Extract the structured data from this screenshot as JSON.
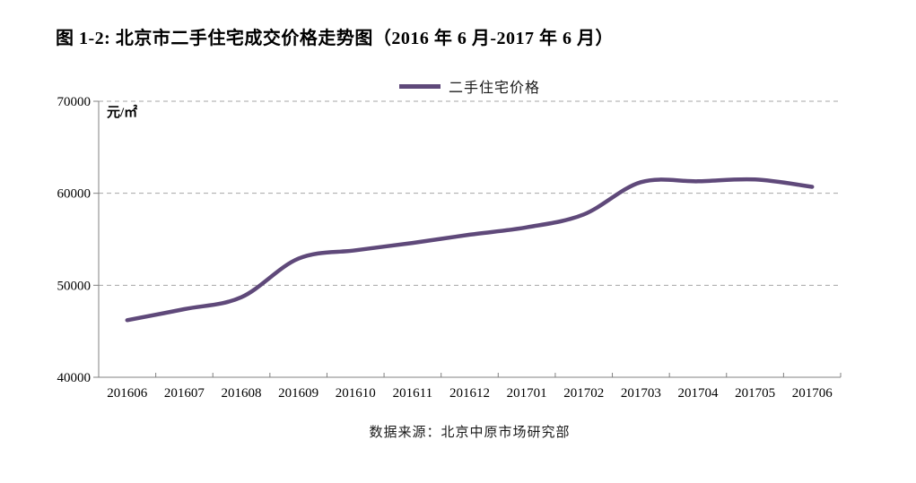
{
  "title": "图 1-2: 北京市二手住宅成交价格走势图（2016 年 6 月-2017 年 6 月）",
  "legend": {
    "label": "二手住宅价格"
  },
  "unit_label": "元/㎡",
  "source": "数据来源：北京中原市场研究部",
  "colors": {
    "line": "#5F497A",
    "grid": "#A6A6A6",
    "axis": "#808080",
    "text": "#000000"
  },
  "chart_data": {
    "type": "line",
    "title": "图 1-2: 北京市二手住宅成交价格走势图（2016 年 6 月-2017 年 6 月）",
    "categories": [
      "201606",
      "201607",
      "201608",
      "201609",
      "201610",
      "201611",
      "201612",
      "201701",
      "201702",
      "201703",
      "201704",
      "201705",
      "201706"
    ],
    "series": [
      {
        "name": "二手住宅价格",
        "values": [
          46200,
          47400,
          48700,
          52900,
          53800,
          54600,
          55500,
          56300,
          57700,
          61200,
          61300,
          61500,
          60700
        ]
      }
    ],
    "ylabel": "元/㎡",
    "xlabel": "",
    "ylim": [
      40000,
      70000
    ],
    "yticks": [
      40000,
      50000,
      60000,
      70000
    ],
    "grid": "horizontal-dashed",
    "legend_position": "top-center",
    "smooth": true
  }
}
